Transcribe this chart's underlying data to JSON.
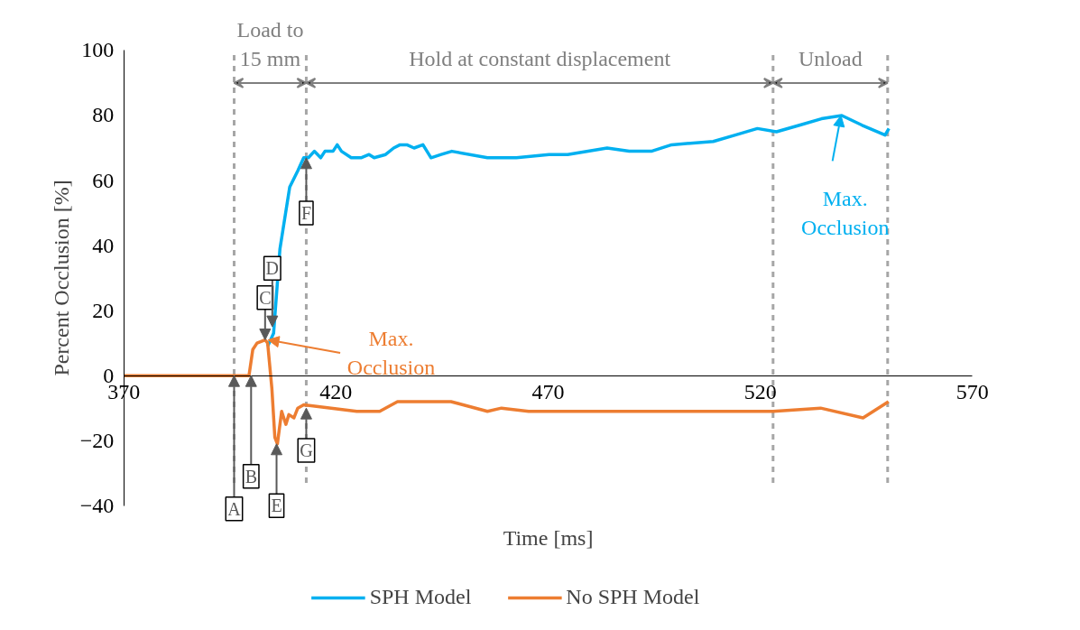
{
  "chart_data": {
    "type": "line",
    "xlabel": "Time [ms]",
    "ylabel": "Percent Occlusion [%]",
    "xlim": [
      370,
      570
    ],
    "xticks": [
      370,
      420,
      470,
      520,
      570
    ],
    "ylim": [
      -40,
      100
    ],
    "yticks": [
      -40,
      -20,
      0,
      20,
      40,
      60,
      80,
      100
    ],
    "grid": false,
    "legend": "bottom",
    "line_style": "solid",
    "marker": "none",
    "series": [
      {
        "name": "SPH Model",
        "color": "#00b0f0",
        "x": [
          403.9,
          405.3,
          406.8,
          409.1,
          411,
          412.4,
          413.5,
          414.9,
          416.4,
          417.4,
          419.3,
          420.3,
          421.3,
          423.6,
          425.9,
          427.8,
          429,
          431.7,
          433.6,
          435.1,
          436.7,
          438.4,
          440.5,
          442.4,
          444.8,
          447.3,
          455.7,
          462.5,
          470.2,
          474.6,
          483.9,
          489.1,
          494.3,
          499.1,
          508.9,
          514.1,
          519.3,
          523.8,
          529.2,
          534.4,
          539.2,
          544,
          549.4,
          550.3
        ],
        "values": [
          9,
          13,
          39,
          58,
          63,
          67,
          67,
          69,
          67,
          69,
          69,
          71,
          69,
          67,
          67,
          68,
          67,
          68,
          70,
          71,
          71,
          70,
          71,
          67,
          68,
          69,
          67,
          67,
          68,
          68,
          70,
          69,
          69,
          71,
          72,
          74,
          76,
          75,
          77,
          79,
          80,
          77,
          74,
          76
        ]
      },
      {
        "name": "No SPH Model",
        "color": "#ed7d31",
        "x": [
          370,
          399.5,
          400.4,
          401.4,
          403.3,
          403.9,
          404.9,
          405.6,
          406.2,
          407.2,
          408.2,
          408.9,
          410.1,
          411,
          412.4,
          424.9,
          430.3,
          434.5,
          438.2,
          442.8,
          447.1,
          455.7,
          459,
          465.4,
          508.7,
          523,
          534.2,
          544.2,
          550.2
        ],
        "values": [
          0,
          0,
          8,
          10,
          11,
          10,
          -4,
          -19,
          -21,
          -11,
          -15,
          -12,
          -13,
          -10,
          -9,
          -11,
          -11,
          -8,
          -8,
          -8,
          -8,
          -11,
          -10,
          -11,
          -11,
          -11,
          -10,
          -13,
          -8
        ]
      }
    ],
    "ref_lines": [
      {
        "axis": "x",
        "value": 396,
        "color": "#a6a6a6",
        "line_style": "dashed"
      },
      {
        "axis": "x",
        "value": 413,
        "color": "#a6a6a6",
        "line_style": "dashed"
      },
      {
        "axis": "x",
        "value": 523,
        "color": "#a6a6a6",
        "line_style": "dashed"
      },
      {
        "axis": "x",
        "value": 550,
        "color": "#a6a6a6",
        "line_style": "dashed"
      }
    ],
    "annotations": [
      "Load to\n15 mm",
      "Hold at constant displacement",
      "Unload",
      {
        "text": "A",
        "x": 396,
        "y": 0
      },
      {
        "text": "B",
        "x": 400,
        "y": 0
      },
      {
        "text": "C",
        "x": 403.3,
        "y": 11
      },
      {
        "text": "D",
        "x": 405,
        "y": 15
      },
      {
        "text": "E",
        "x": 406,
        "y": -21
      },
      {
        "text": "F",
        "x": 413,
        "y": 67
      },
      {
        "text": "G",
        "x": 413,
        "y": -10
      },
      {
        "text": "Max.\nOcclusion",
        "x": 404,
        "y": 11
      },
      {
        "text": "Max.\nOcclusion",
        "x": 539,
        "y": 80
      }
    ]
  }
}
